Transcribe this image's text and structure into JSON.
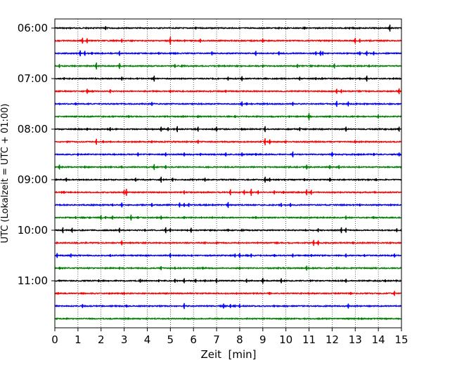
{
  "chart_data": {
    "type": "line",
    "subtype": "helicorder",
    "title": "",
    "xlabel": "Zeit  [min]",
    "ylabel": "UTC (Lokalzeit = UTC + 01:00)",
    "xlim": [
      0,
      15
    ],
    "x_ticks": [
      0,
      1,
      2,
      3,
      4,
      5,
      6,
      7,
      8,
      9,
      10,
      11,
      12,
      13,
      14,
      15
    ],
    "x_tick_labels": [
      "0",
      "1",
      "2",
      "3",
      "4",
      "5",
      "6",
      "7",
      "8",
      "9",
      "10",
      "11",
      "12",
      "13",
      "14",
      "15"
    ],
    "y_tick_labels": [
      "06:00",
      "07:00",
      "08:00",
      "09:00",
      "10:00",
      "11:00"
    ],
    "line_interval_min": 15,
    "grid": "vertical dotted at each minute",
    "colors": [
      "#000000",
      "#ff0000",
      "#0000ff",
      "#008000"
    ],
    "traces": [
      {
        "start": "06:00",
        "color": "#000000",
        "spikes": [
          [
            2.2,
            0.4
          ],
          [
            6.1,
            0.3
          ],
          [
            10.8,
            0.3
          ],
          [
            14.5,
            0.7
          ]
        ]
      },
      {
        "start": "06:15",
        "color": "#ff0000",
        "spikes": [
          [
            1.2,
            0.6
          ],
          [
            1.4,
            0.5
          ],
          [
            2.9,
            0.4
          ],
          [
            5.0,
            0.8
          ],
          [
            6.3,
            0.4
          ],
          [
            9.0,
            0.4
          ],
          [
            13.0,
            0.6
          ],
          [
            13.2,
            0.4
          ]
        ]
      },
      {
        "start": "06:30",
        "color": "#0000ff",
        "spikes": [
          [
            1.1,
            0.6
          ],
          [
            1.3,
            0.5
          ],
          [
            1.6,
            0.3
          ],
          [
            2.8,
            0.5
          ],
          [
            4.5,
            0.3
          ],
          [
            6.8,
            0.4
          ],
          [
            8.7,
            0.5
          ],
          [
            9.7,
            0.4
          ],
          [
            11.3,
            0.4
          ],
          [
            11.5,
            0.5
          ],
          [
            11.6,
            0.4
          ],
          [
            13.2,
            0.4
          ],
          [
            13.5,
            0.5
          ],
          [
            13.8,
            0.4
          ]
        ]
      },
      {
        "start": "06:45",
        "color": "#008000",
        "spikes": [
          [
            0.2,
            0.4
          ],
          [
            1.8,
            0.7
          ],
          [
            2.8,
            0.6
          ],
          [
            5.2,
            0.4
          ],
          [
            5.5,
            0.3
          ],
          [
            9.0,
            0.3
          ],
          [
            10.5,
            0.4
          ],
          [
            12.1,
            0.5
          ],
          [
            13.6,
            0.3
          ]
        ]
      },
      {
        "start": "07:00",
        "color": "#000000",
        "spikes": [
          [
            0.4,
            0.3
          ],
          [
            2.9,
            0.4
          ],
          [
            4.3,
            0.6
          ],
          [
            7.5,
            0.4
          ],
          [
            8.1,
            0.5
          ],
          [
            10.6,
            0.4
          ],
          [
            11.3,
            0.3
          ],
          [
            13.5,
            0.6
          ]
        ]
      },
      {
        "start": "07:15",
        "color": "#ff0000",
        "spikes": [
          [
            1.4,
            0.5
          ],
          [
            2.4,
            0.4
          ],
          [
            5.0,
            0.3
          ],
          [
            7.4,
            0.3
          ],
          [
            12.2,
            0.5
          ],
          [
            12.4,
            0.4
          ],
          [
            14.9,
            0.6
          ]
        ]
      },
      {
        "start": "07:30",
        "color": "#0000ff",
        "spikes": [
          [
            0.9,
            0.3
          ],
          [
            4.2,
            0.4
          ],
          [
            8.1,
            0.5
          ],
          [
            8.3,
            0.3
          ],
          [
            10.3,
            0.4
          ],
          [
            12.2,
            0.6
          ],
          [
            12.7,
            0.5
          ]
        ]
      },
      {
        "start": "07:45",
        "color": "#008000",
        "spikes": [
          [
            3.2,
            0.3
          ],
          [
            6.2,
            0.3
          ],
          [
            7.8,
            0.3
          ],
          [
            11.0,
            0.7
          ],
          [
            14.0,
            0.4
          ]
        ]
      },
      {
        "start": "08:00",
        "color": "#000000",
        "spikes": [
          [
            1.4,
            0.3
          ],
          [
            2.4,
            0.4
          ],
          [
            4.6,
            0.5
          ],
          [
            4.9,
            0.4
          ],
          [
            5.3,
            0.6
          ],
          [
            6.2,
            0.5
          ],
          [
            7.0,
            0.5
          ],
          [
            9.1,
            0.6
          ],
          [
            10.6,
            0.4
          ],
          [
            12.6,
            0.5
          ],
          [
            14.9,
            0.5
          ]
        ]
      },
      {
        "start": "08:15",
        "color": "#ff0000",
        "spikes": [
          [
            1.8,
            0.6
          ],
          [
            2.1,
            0.3
          ],
          [
            4.2,
            0.3
          ],
          [
            6.2,
            0.4
          ],
          [
            9.1,
            0.7
          ],
          [
            9.3,
            0.5
          ],
          [
            10.0,
            0.3
          ],
          [
            13.0,
            0.3
          ]
        ]
      },
      {
        "start": "08:30",
        "color": "#0000ff",
        "spikes": [
          [
            1.0,
            0.3
          ],
          [
            3.6,
            0.4
          ],
          [
            4.8,
            0.4
          ],
          [
            5.6,
            0.4
          ],
          [
            6.3,
            0.3
          ],
          [
            7.4,
            0.4
          ],
          [
            8.1,
            0.4
          ],
          [
            8.7,
            0.3
          ],
          [
            10.3,
            0.6
          ],
          [
            12.0,
            0.5
          ],
          [
            13.8,
            0.3
          ],
          [
            14.9,
            0.4
          ]
        ]
      },
      {
        "start": "08:45",
        "color": "#008000",
        "spikes": [
          [
            0.2,
            0.5
          ],
          [
            1.3,
            0.3
          ],
          [
            2.9,
            0.3
          ],
          [
            4.3,
            0.6
          ],
          [
            4.8,
            0.4
          ],
          [
            10.9,
            0.5
          ],
          [
            11.9,
            0.4
          ],
          [
            12.3,
            0.4
          ]
        ]
      },
      {
        "start": "09:00",
        "color": "#000000",
        "spikes": [
          [
            0.5,
            0.4
          ],
          [
            3.5,
            0.4
          ],
          [
            4.6,
            0.6
          ],
          [
            5.1,
            0.4
          ],
          [
            6.5,
            0.4
          ],
          [
            9.1,
            0.6
          ],
          [
            9.3,
            0.4
          ],
          [
            10.8,
            0.3
          ],
          [
            11.9,
            0.4
          ],
          [
            13.9,
            0.3
          ]
        ]
      },
      {
        "start": "09:15",
        "color": "#ff0000",
        "spikes": [
          [
            0.4,
            0.3
          ],
          [
            3.1,
            0.7
          ],
          [
            3.0,
            0.5
          ],
          [
            5.6,
            0.4
          ],
          [
            7.6,
            0.6
          ],
          [
            8.2,
            0.5
          ],
          [
            8.5,
            0.7
          ],
          [
            8.8,
            0.4
          ],
          [
            9.5,
            0.4
          ],
          [
            9.9,
            0.3
          ],
          [
            10.9,
            0.6
          ],
          [
            11.1,
            0.5
          ]
        ]
      },
      {
        "start": "09:30",
        "color": "#0000ff",
        "spikes": [
          [
            2.5,
            0.3
          ],
          [
            2.9,
            0.5
          ],
          [
            4.2,
            0.4
          ],
          [
            5.4,
            0.5
          ],
          [
            5.6,
            0.4
          ],
          [
            5.8,
            0.4
          ],
          [
            7.5,
            0.6
          ],
          [
            9.8,
            0.4
          ],
          [
            10.2,
            0.4
          ],
          [
            13.2,
            0.3
          ]
        ]
      },
      {
        "start": "09:45",
        "color": "#008000",
        "spikes": [
          [
            0.9,
            0.3
          ],
          [
            2.0,
            0.5
          ],
          [
            2.2,
            0.3
          ],
          [
            2.5,
            0.4
          ],
          [
            3.3,
            0.6
          ],
          [
            3.6,
            0.3
          ],
          [
            4.6,
            0.4
          ],
          [
            5.6,
            0.3
          ],
          [
            8.7,
            0.3
          ],
          [
            12.6,
            0.4
          ],
          [
            13.8,
            0.3
          ]
        ]
      },
      {
        "start": "10:00",
        "color": "#000000",
        "spikes": [
          [
            0.35,
            0.6
          ],
          [
            0.75,
            0.5
          ],
          [
            2.8,
            0.5
          ],
          [
            3.9,
            0.3
          ],
          [
            4.8,
            0.6
          ],
          [
            5.0,
            0.4
          ],
          [
            5.9,
            0.5
          ],
          [
            7.5,
            0.3
          ],
          [
            8.1,
            0.3
          ],
          [
            11.4,
            0.4
          ],
          [
            12.4,
            0.6
          ],
          [
            12.6,
            0.5
          ],
          [
            14.8,
            0.4
          ]
        ]
      },
      {
        "start": "10:15",
        "color": "#ff0000",
        "spikes": [
          [
            2.9,
            0.5
          ],
          [
            6.5,
            0.3
          ],
          [
            11.2,
            0.6
          ],
          [
            11.4,
            0.5
          ],
          [
            12.9,
            0.3
          ]
        ]
      },
      {
        "start": "10:30",
        "color": "#0000ff",
        "spikes": [
          [
            0.1,
            0.5
          ],
          [
            0.7,
            0.4
          ],
          [
            2.4,
            0.3
          ],
          [
            5.0,
            0.5
          ],
          [
            7.8,
            0.4
          ],
          [
            8.0,
            0.5
          ],
          [
            8.5,
            0.4
          ],
          [
            9.5,
            0.3
          ],
          [
            10.3,
            0.4
          ],
          [
            11.1,
            0.3
          ],
          [
            12.6,
            0.4
          ],
          [
            13.4,
            0.3
          ],
          [
            14.7,
            0.4
          ]
        ]
      },
      {
        "start": "10:45",
        "color": "#008000",
        "spikes": [
          [
            0.2,
            0.3
          ],
          [
            2.8,
            0.3
          ],
          [
            4.6,
            0.4
          ],
          [
            5.2,
            0.3
          ],
          [
            6.4,
            0.3
          ],
          [
            8.0,
            0.3
          ],
          [
            10.9,
            0.5
          ],
          [
            12.2,
            0.3
          ]
        ]
      },
      {
        "start": "11:00",
        "color": "#000000",
        "spikes": [
          [
            1.9,
            0.3
          ],
          [
            3.7,
            0.4
          ],
          [
            4.5,
            0.3
          ],
          [
            5.2,
            0.4
          ],
          [
            5.6,
            0.5
          ],
          [
            6.1,
            0.4
          ],
          [
            6.5,
            0.3
          ],
          [
            7.0,
            0.5
          ],
          [
            8.3,
            0.4
          ],
          [
            9.0,
            0.6
          ],
          [
            9.8,
            0.5
          ],
          [
            12.6,
            0.4
          ],
          [
            14.3,
            0.3
          ]
        ]
      },
      {
        "start": "11:15",
        "color": "#ff0000",
        "spikes": [
          [
            3.0,
            0.3
          ],
          [
            9.3,
            0.3
          ],
          [
            12.8,
            0.3
          ],
          [
            14.7,
            0.5
          ]
        ]
      },
      {
        "start": "11:30",
        "color": "#0000ff",
        "spikes": [
          [
            1.2,
            0.4
          ],
          [
            3.1,
            0.3
          ],
          [
            5.6,
            0.6
          ],
          [
            7.3,
            0.5
          ],
          [
            7.6,
            0.4
          ],
          [
            7.8,
            0.3
          ],
          [
            8.0,
            0.4
          ],
          [
            12.7,
            0.5
          ]
        ]
      },
      {
        "start": "11:45",
        "color": "#008000",
        "spikes": [
          [
            3.0,
            0.2
          ],
          [
            10.0,
            0.2
          ]
        ]
      }
    ]
  }
}
